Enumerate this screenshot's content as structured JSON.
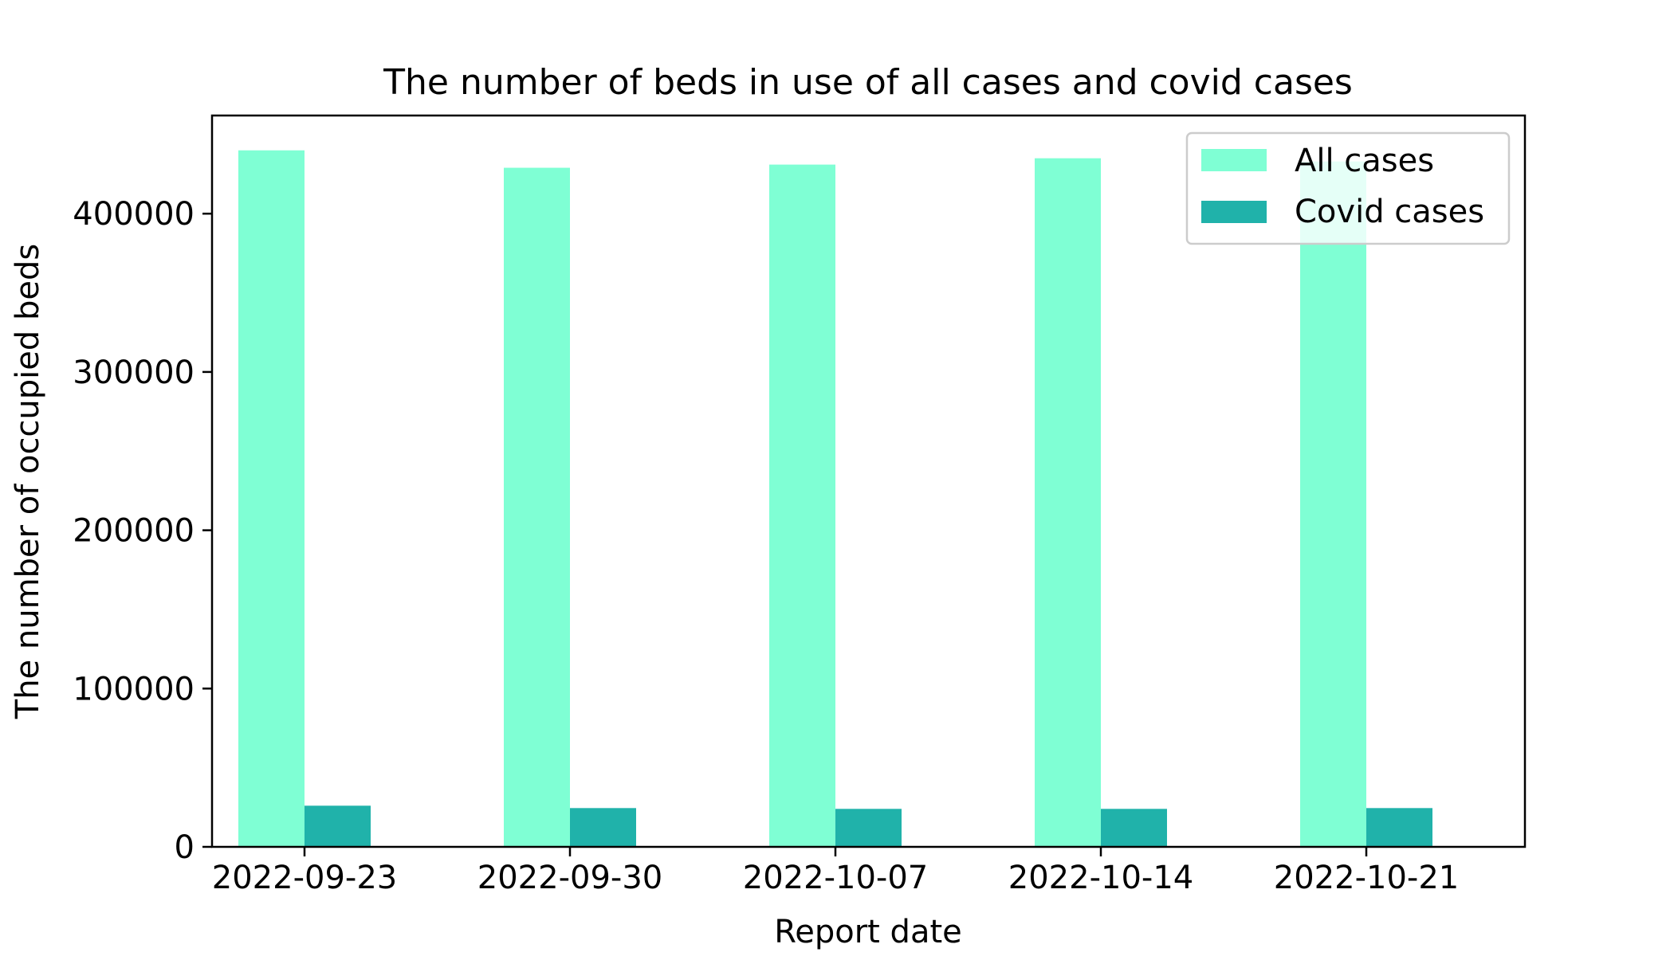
{
  "chart_data": {
    "type": "bar",
    "title": "The number of beds in use of all cases and covid cases",
    "xlabel": "Report date",
    "ylabel": "The number of occupied beds",
    "categories": [
      "2022-09-23",
      "2022-09-30",
      "2022-10-07",
      "2022-10-14",
      "2022-10-21"
    ],
    "series": [
      {
        "name": "All cases",
        "color": "#7fffd4",
        "values": [
          440000,
          429000,
          431000,
          435000,
          433000
        ]
      },
      {
        "name": "Covid cases",
        "color": "#20b2aa",
        "values": [
          26000,
          24500,
          24000,
          24000,
          24500
        ]
      }
    ],
    "ylim": [
      0,
      462000
    ],
    "yticks": [
      0,
      100000,
      200000,
      300000,
      400000
    ],
    "grid": false,
    "legend_position": "top-right"
  }
}
